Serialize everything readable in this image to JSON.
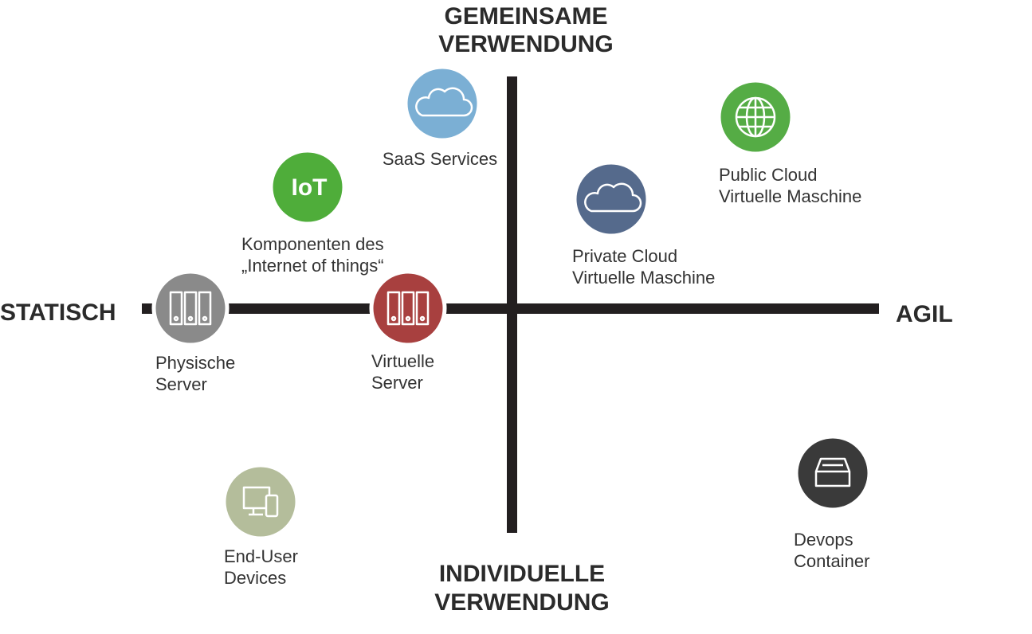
{
  "axes": {
    "top": [
      "GEMEINSAME",
      "VERWENDUNG"
    ],
    "bottom": [
      "INDIVIDUELLE",
      "VERWENDUNG"
    ],
    "left": "STATISCH",
    "right": "AGIL"
  },
  "nodes": [
    {
      "id": "saas",
      "label": [
        "SaaS Services"
      ]
    },
    {
      "id": "iot",
      "icon_text": "IoT",
      "label": [
        "Komponenten des",
        "„Internet of things“"
      ]
    },
    {
      "id": "physical",
      "label": [
        "Physische",
        "Server"
      ]
    },
    {
      "id": "virtual",
      "label": [
        "Virtuelle",
        "Server"
      ]
    },
    {
      "id": "private",
      "label": [
        "Private Cloud",
        "Virtuelle Maschine"
      ]
    },
    {
      "id": "public",
      "label": [
        "Public Cloud",
        "Virtuelle Maschine"
      ]
    },
    {
      "id": "enduser",
      "label": [
        "End-User",
        "Devices"
      ]
    },
    {
      "id": "devops",
      "label": [
        "Devops",
        "Container"
      ]
    }
  ]
}
